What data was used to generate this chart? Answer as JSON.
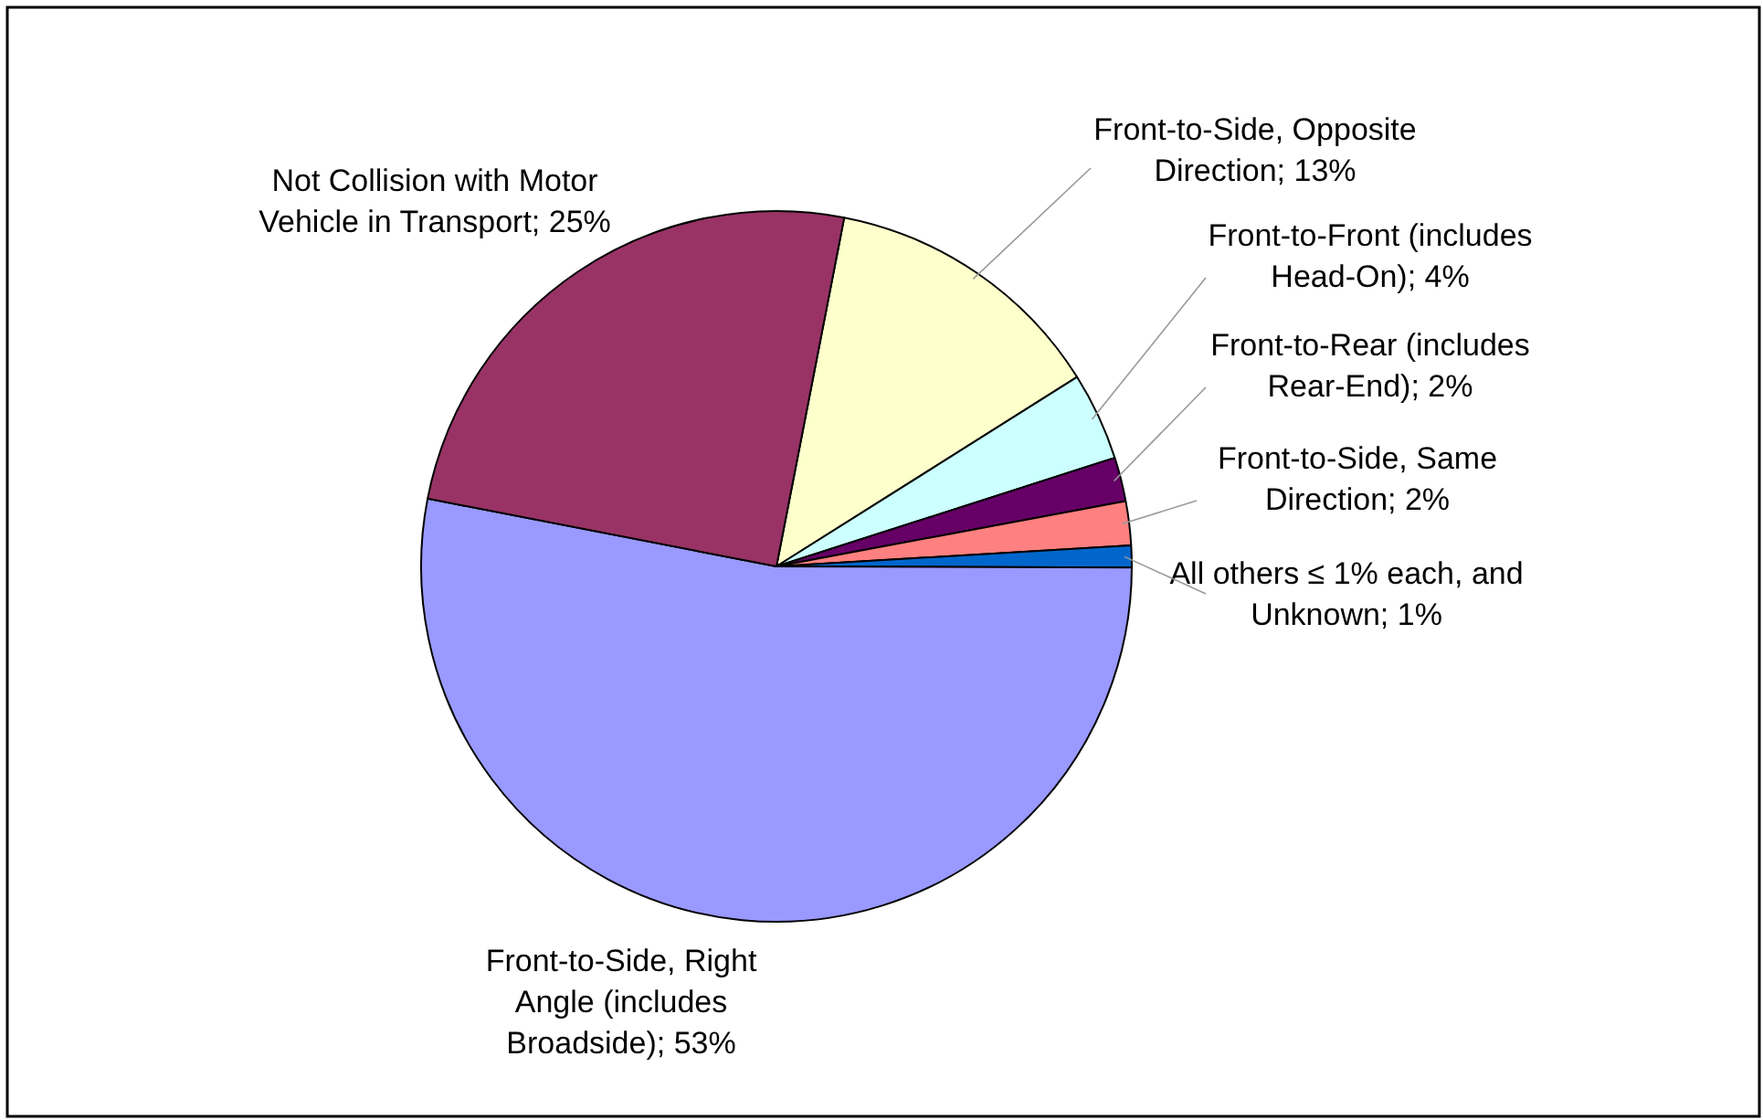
{
  "chart_data": {
    "type": "pie",
    "categories": [
      "Front-to-Side, Opposite Direction",
      "Front-to-Front (includes Head-On)",
      "Front-to-Rear (includes Rear-End)",
      "Front-to-Side, Same Direction",
      "All others ≤ 1% each, and Unknown",
      "Front-to-Side, Right Angle (includes Broadside)",
      "Not Collision with Motor Vehicle in Transport"
    ],
    "values": [
      13,
      4,
      2,
      2,
      1,
      53,
      25
    ],
    "value_labels": [
      "13%",
      "4%",
      "2%",
      "2%",
      "1%",
      "53%",
      "25%"
    ],
    "colors": [
      "#ffffcc",
      "#ccffff",
      "#660066",
      "#ff8080",
      "#0066cc",
      "#9999ff",
      "#993366"
    ],
    "legend": false
  }
}
